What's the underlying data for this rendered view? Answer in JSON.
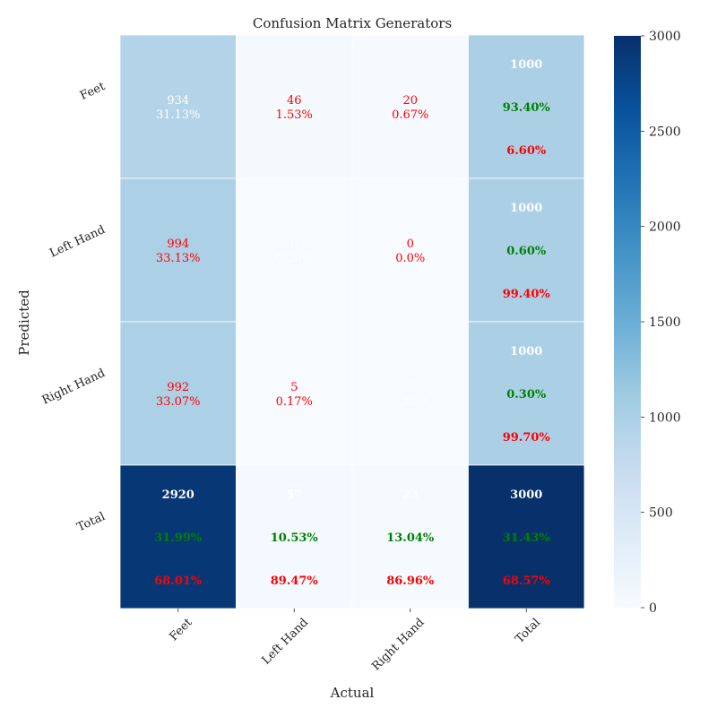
{
  "chart_data": {
    "type": "heatmap",
    "title": "Confusion Matrix Generators",
    "xlabel": "Actual",
    "ylabel": "Predicted",
    "x_categories": [
      "Feet",
      "Left Hand",
      "Right Hand",
      "Total"
    ],
    "y_categories": [
      "Feet",
      "Left Hand",
      "Right Hand",
      "Total"
    ],
    "values": [
      [
        934,
        46,
        20,
        1000
      ],
      [
        994,
        6,
        0,
        1000
      ],
      [
        992,
        5,
        3,
        1000
      ],
      [
        2920,
        57,
        23,
        3000
      ]
    ],
    "cells": [
      [
        {
          "count": "934",
          "pct": "31.13%"
        },
        {
          "count": "46",
          "pct": "1.53%"
        },
        {
          "count": "20",
          "pct": "0.67%"
        },
        {
          "count": "1000",
          "correct": "93.40%",
          "wrong": "6.60%"
        }
      ],
      [
        {
          "count": "994",
          "pct": "33.13%"
        },
        {
          "count": "6",
          "pct": "0.20%"
        },
        {
          "count": "0",
          "pct": "0.0%"
        },
        {
          "count": "1000",
          "correct": "0.60%",
          "wrong": "99.40%"
        }
      ],
      [
        {
          "count": "992",
          "pct": "33.07%"
        },
        {
          "count": "5",
          "pct": "0.17%"
        },
        {
          "count": "3",
          "pct": "0.10%"
        },
        {
          "count": "1000",
          "correct": "0.30%",
          "wrong": "99.70%"
        }
      ],
      [
        {
          "count": "2920",
          "correct": "31.99%",
          "wrong": "68.01%"
        },
        {
          "count": "57",
          "correct": "10.53%",
          "wrong": "89.47%"
        },
        {
          "count": "23",
          "correct": "13.04%",
          "wrong": "86.96%"
        },
        {
          "count": "3000",
          "correct": "31.43%",
          "wrong": "68.57%"
        }
      ]
    ],
    "colorbar": {
      "min": 0,
      "max": 3000,
      "ticks": [
        "0",
        "500",
        "1000",
        "1500",
        "2000",
        "2500",
        "3000"
      ],
      "colormap": "Blues"
    },
    "colors": {
      "count_text": "#ffffff",
      "pct_text": "#ff0000",
      "correct_text": "#008000",
      "wrong_text": "#ff0000",
      "diag_text": "#ffffff"
    }
  }
}
